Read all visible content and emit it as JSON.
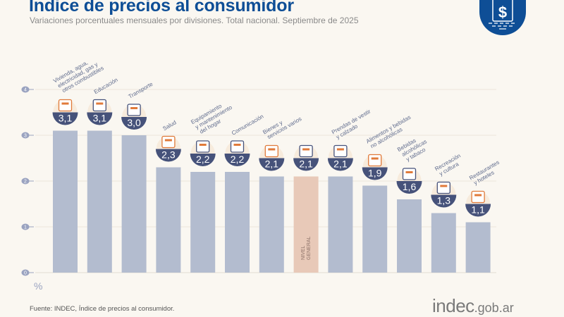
{
  "header": {
    "title": "Indice de precios al consumidor",
    "subtitle": "Variaciones porcentuales mensuales por divisiones. Total nacional. Septiembre de 2025",
    "logo_icon": "dollar-document-icon"
  },
  "footer": {
    "source": "Fuente: INDEC, Índice de precios al consumidor.",
    "brand_main": "indec",
    "brand_suffix": ".gob.ar"
  },
  "colors": {
    "title": "#0e4e96",
    "bar": "#b3bccf",
    "bar_highlight": "#e8c9b8",
    "badge": "#46527a",
    "icon_accent": "#e07a3a",
    "axis_marker": "#9aa3c0"
  },
  "chart_data": {
    "type": "bar",
    "title": "Indice de precios al consumidor",
    "subtitle": "Variaciones porcentuales mensuales por divisiones. Total nacional. Septiembre de 2025",
    "ylabel": "%",
    "xlabel": "",
    "ylim": [
      0,
      4
    ],
    "yticks": [
      0,
      1,
      2,
      3,
      4
    ],
    "grid": true,
    "categories": [
      "Vivienda, agua, electricidad, gas y otros combustibles",
      "Educación",
      "Transporte",
      "Salud",
      "Equipamiento y mantenimiento del hogar",
      "Comunicación",
      "Bienes y servicios varios",
      "Nivel general",
      "Prendas de vestir y calzado",
      "Alimentos y bebidas no alcohólicas",
      "Bebidas alcohólicas y tabaco",
      "Recreación y cultura",
      "Restaurantes y hoteles"
    ],
    "label_lines": [
      [
        "Vivienda, agua,",
        "electricidad, gas y",
        "otros combustibles"
      ],
      [
        "Educación"
      ],
      [
        "Transporte"
      ],
      [
        "Salud"
      ],
      [
        "Equipamiento",
        "y mantenimiento",
        "del hogar"
      ],
      [
        "Comunicación"
      ],
      [
        "Bienes y",
        "servicios varios"
      ],
      [],
      [
        "Prendas de vestir",
        "y calzado"
      ],
      [
        "Alimentos y bebidas",
        "no alcohólicas"
      ],
      [
        "Bebidas",
        "alcohólicas",
        "y tabaco"
      ],
      [
        "Recreación",
        "y cultura"
      ],
      [
        "Restaurantes",
        "y hoteles"
      ]
    ],
    "values": [
      3.1,
      3.1,
      3.0,
      2.3,
      2.2,
      2.2,
      2.1,
      2.1,
      2.1,
      1.9,
      1.6,
      1.3,
      1.1
    ],
    "value_labels": [
      "3,1",
      "3,1",
      "3,0",
      "2,3",
      "2,2",
      "2,2",
      "2,1",
      "2,1",
      "2,1",
      "1,9",
      "1,6",
      "1,3",
      "1,1"
    ],
    "highlight_index": 7,
    "highlight_label": [
      "NIVEL",
      "GENERAL"
    ],
    "icons": [
      "lightbulb-tools-icon",
      "notebook-pencil-icon",
      "sube-card-car-icon",
      "first-aid-kit-icon",
      "washing-machine-icon",
      "smartphone-icon",
      "comb-scissors-icon",
      "shopping-basket-icon",
      "tshirt-icon",
      "chicken-food-icon",
      "bottle-glass-icon",
      "umbrella-sun-icon",
      "plate-cutlery-icon"
    ]
  }
}
